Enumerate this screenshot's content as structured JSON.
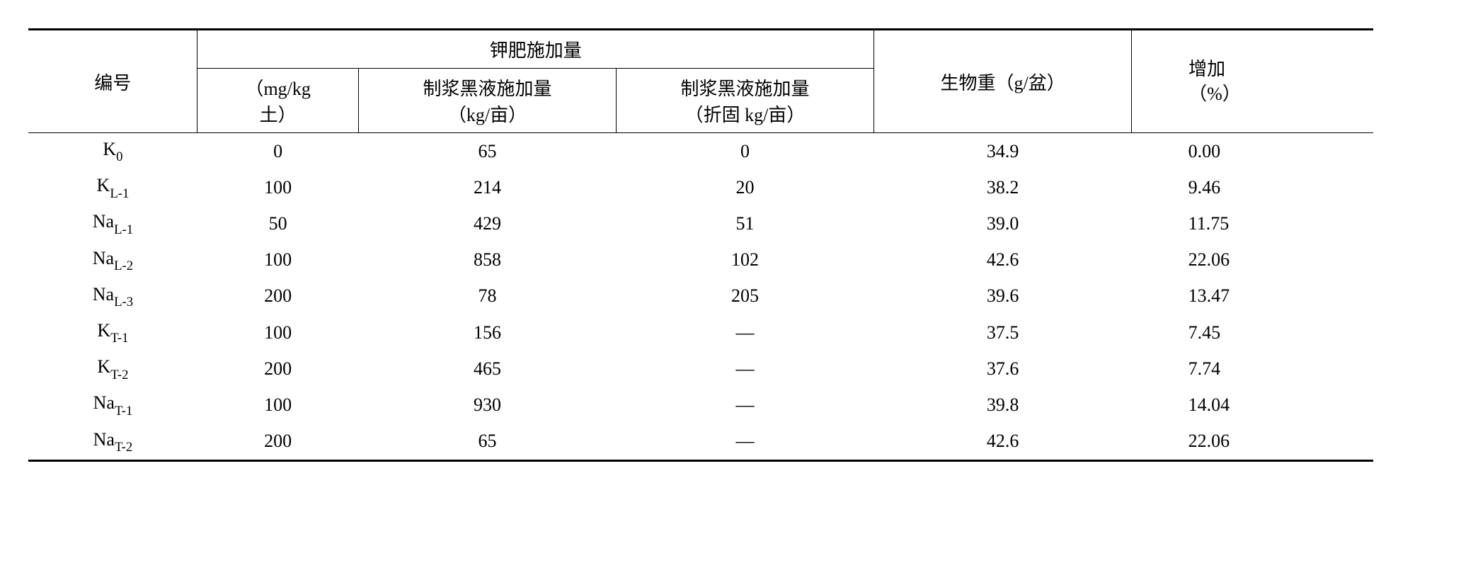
{
  "headers": {
    "id": "编号",
    "group": "钾肥施加量",
    "a_l1": "（mg/kg",
    "a_l2": "土）",
    "b_l1": "制浆黑液施加量",
    "b_l2": "（kg/亩）",
    "c_l1": "制浆黑液施加量",
    "c_l2": "（折固 kg/亩）",
    "bio": "生物重（g/盆）",
    "inc_l1": "增加",
    "inc_l2": "（%）"
  },
  "rows": [
    {
      "id_main": "K",
      "id_sub": "0",
      "a": "0",
      "b": "65",
      "c": "0",
      "bio": "34.9",
      "inc": "0.00"
    },
    {
      "id_main": "K",
      "id_sub": "L-1",
      "a": "100",
      "b": "214",
      "c": "20",
      "bio": "38.2",
      "inc": "9.46"
    },
    {
      "id_main": "Na",
      "id_sub": "L-1",
      "a": "50",
      "b": "429",
      "c": "51",
      "bio": "39.0",
      "inc": "11.75"
    },
    {
      "id_main": "Na",
      "id_sub": "L-2",
      "a": "100",
      "b": "858",
      "c": "102",
      "bio": "42.6",
      "inc": "22.06"
    },
    {
      "id_main": "Na",
      "id_sub": "L-3",
      "a": "200",
      "b": "78",
      "c": "205",
      "bio": "39.6",
      "inc": "13.47"
    },
    {
      "id_main": "K",
      "id_sub": "T-1",
      "a": "100",
      "b": "156",
      "c": "—",
      "bio": "37.5",
      "inc": "7.45"
    },
    {
      "id_main": "K",
      "id_sub": "T-2",
      "a": "200",
      "b": "465",
      "c": "—",
      "bio": "37.6",
      "inc": "7.74"
    },
    {
      "id_main": "Na",
      "id_sub": "T-1",
      "a": "100",
      "b": "930",
      "c": "—",
      "bio": "39.8",
      "inc": "14.04"
    },
    {
      "id_main": "Na",
      "id_sub": "T-2",
      "a": "200",
      "b": "65",
      "c": "—",
      "bio": "42.6",
      "inc": "22.06"
    }
  ]
}
